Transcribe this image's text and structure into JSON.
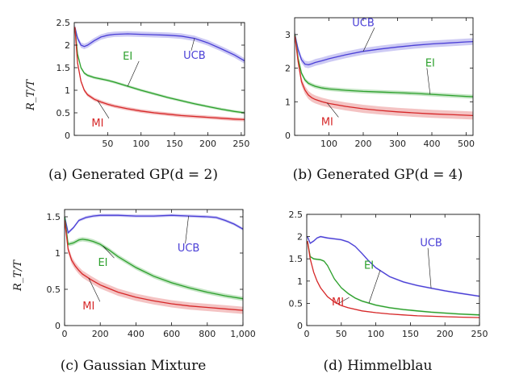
{
  "chart_data": [
    {
      "type": "line",
      "panel": "a",
      "caption": "(a) Generated GP(d = 2)",
      "ylabel": "R_T/T",
      "xlim": [
        0,
        255
      ],
      "ylim": [
        0,
        2.5
      ],
      "xticks": [
        50,
        100,
        150,
        200,
        250
      ],
      "yticks": [
        0,
        0.5,
        1,
        1.5,
        2,
        2.5
      ],
      "ytick_labels": [
        "0",
        "0.5",
        "1",
        "1.5",
        "2",
        "2.5"
      ],
      "series": [
        {
          "name": "UCB",
          "color": "#4a3fd6",
          "x": [
            1,
            5,
            10,
            15,
            20,
            30,
            40,
            50,
            60,
            80,
            100,
            120,
            140,
            160,
            180,
            200,
            220,
            240,
            255
          ],
          "y": [
            2.4,
            2.15,
            2.0,
            1.97,
            2.0,
            2.1,
            2.18,
            2.22,
            2.24,
            2.25,
            2.24,
            2.23,
            2.22,
            2.2,
            2.15,
            2.05,
            1.92,
            1.78,
            1.65
          ],
          "band": 0.06
        },
        {
          "name": "EI",
          "color": "#2ca02c",
          "x": [
            1,
            5,
            10,
            15,
            20,
            30,
            40,
            50,
            60,
            80,
            100,
            120,
            140,
            160,
            180,
            200,
            220,
            240,
            255
          ],
          "y": [
            2.4,
            1.8,
            1.5,
            1.38,
            1.33,
            1.28,
            1.25,
            1.22,
            1.18,
            1.09,
            1.0,
            0.92,
            0.84,
            0.77,
            0.7,
            0.64,
            0.58,
            0.53,
            0.5
          ],
          "band": 0.03
        },
        {
          "name": "MI",
          "color": "#d62728",
          "x": [
            1,
            5,
            10,
            15,
            20,
            30,
            40,
            50,
            60,
            80,
            100,
            120,
            140,
            160,
            180,
            200,
            220,
            240,
            255
          ],
          "y": [
            2.4,
            1.6,
            1.2,
            1.0,
            0.9,
            0.8,
            0.74,
            0.69,
            0.65,
            0.59,
            0.54,
            0.5,
            0.47,
            0.44,
            0.42,
            0.4,
            0.38,
            0.36,
            0.35
          ],
          "band": 0.04
        }
      ],
      "labels": [
        {
          "text": "UCB",
          "series": "UCB",
          "x": 180,
          "y": 1.7
        },
        {
          "text": "EI",
          "series": "EI",
          "x": 80,
          "y": 1.68
        },
        {
          "text": "MI",
          "series": "MI",
          "x": 35,
          "y": 0.2
        }
      ]
    },
    {
      "type": "line",
      "panel": "b",
      "caption": "(b) Generated GP(d = 4)",
      "ylabel": "",
      "xlim": [
        0,
        520
      ],
      "ylim": [
        0,
        3.5
      ],
      "xticks": [
        100,
        200,
        300,
        400,
        500
      ],
      "yticks": [
        0,
        1,
        2,
        3
      ],
      "ytick_labels": [
        "0",
        "1",
        "2",
        "3"
      ],
      "series": [
        {
          "name": "UCB",
          "color": "#4a3fd6",
          "x": [
            1,
            10,
            20,
            30,
            40,
            50,
            60,
            80,
            100,
            150,
            200,
            250,
            300,
            350,
            400,
            450,
            500,
            520
          ],
          "y": [
            3.0,
            2.55,
            2.25,
            2.12,
            2.1,
            2.13,
            2.17,
            2.22,
            2.28,
            2.4,
            2.5,
            2.57,
            2.63,
            2.68,
            2.72,
            2.75,
            2.78,
            2.79
          ],
          "band": 0.1
        },
        {
          "name": "EI",
          "color": "#2ca02c",
          "x": [
            1,
            10,
            20,
            30,
            40,
            50,
            60,
            80,
            100,
            150,
            200,
            250,
            300,
            350,
            400,
            450,
            500,
            520
          ],
          "y": [
            3.0,
            2.3,
            1.85,
            1.65,
            1.55,
            1.5,
            1.46,
            1.41,
            1.38,
            1.34,
            1.31,
            1.29,
            1.27,
            1.25,
            1.22,
            1.19,
            1.16,
            1.15
          ],
          "band": 0.06
        },
        {
          "name": "MI",
          "color": "#d62728",
          "x": [
            1,
            10,
            20,
            30,
            40,
            50,
            60,
            80,
            100,
            150,
            200,
            250,
            300,
            350,
            400,
            450,
            500,
            520
          ],
          "y": [
            2.95,
            2.2,
            1.6,
            1.35,
            1.2,
            1.12,
            1.07,
            1.0,
            0.95,
            0.86,
            0.79,
            0.74,
            0.7,
            0.67,
            0.64,
            0.62,
            0.6,
            0.59
          ],
          "band": 0.12
        }
      ],
      "labels": [
        {
          "text": "UCB",
          "series": "UCB",
          "x": 200,
          "y": 3.25
        },
        {
          "text": "EI",
          "series": "EI",
          "x": 395,
          "y": 2.05
        },
        {
          "text": "MI",
          "series": "MI",
          "x": 95,
          "y": 0.3
        }
      ]
    },
    {
      "type": "line",
      "panel": "c",
      "caption": "(c) Gaussian Mixture",
      "ylabel": "R_T/T",
      "xlim": [
        0,
        1000
      ],
      "ylim": [
        0,
        1.6
      ],
      "xticks": [
        0,
        200,
        400,
        600,
        800,
        1000
      ],
      "xtick_labels": [
        "0",
        "200",
        "400",
        "600",
        "800",
        "1,000"
      ],
      "yticks": [
        0,
        0.5,
        1,
        1.5
      ],
      "ytick_labels": [
        "0",
        "0.5",
        "1",
        "1.5"
      ],
      "series": [
        {
          "name": "UCB",
          "color": "#4a3fd6",
          "x": [
            1,
            20,
            50,
            80,
            120,
            160,
            200,
            300,
            400,
            500,
            600,
            700,
            800,
            850,
            900,
            950,
            1000
          ],
          "y": [
            1.5,
            1.28,
            1.35,
            1.45,
            1.49,
            1.51,
            1.52,
            1.52,
            1.51,
            1.51,
            1.52,
            1.51,
            1.5,
            1.49,
            1.45,
            1.4,
            1.33
          ],
          "band": 0.02
        },
        {
          "name": "EI",
          "color": "#2ca02c",
          "x": [
            1,
            20,
            50,
            80,
            100,
            130,
            160,
            200,
            250,
            300,
            400,
            500,
            600,
            700,
            800,
            900,
            1000
          ],
          "y": [
            1.5,
            1.12,
            1.14,
            1.18,
            1.19,
            1.18,
            1.16,
            1.12,
            1.04,
            0.95,
            0.8,
            0.68,
            0.59,
            0.52,
            0.46,
            0.41,
            0.37
          ],
          "band": 0.03
        },
        {
          "name": "MI",
          "color": "#d62728",
          "x": [
            1,
            20,
            40,
            60,
            80,
            100,
            150,
            200,
            300,
            400,
            500,
            600,
            700,
            800,
            900,
            1000
          ],
          "y": [
            1.45,
            1.05,
            0.9,
            0.82,
            0.76,
            0.71,
            0.63,
            0.56,
            0.46,
            0.39,
            0.34,
            0.3,
            0.27,
            0.25,
            0.23,
            0.21
          ],
          "band": 0.05
        }
      ],
      "labels": [
        {
          "text": "UCB",
          "series": "UCB",
          "x": 695,
          "y": 1.02
        },
        {
          "text": "EI",
          "series": "EI",
          "x": 215,
          "y": 0.82
        },
        {
          "text": "MI",
          "series": "MI",
          "x": 135,
          "y": 0.22
        }
      ]
    },
    {
      "type": "line",
      "panel": "d",
      "caption": "(d) Himmelblau",
      "ylabel": "",
      "xlim": [
        0,
        250
      ],
      "ylim": [
        0,
        2.5
      ],
      "xticks": [
        0,
        50,
        100,
        150,
        200,
        250
      ],
      "yticks": [
        0,
        0.5,
        1,
        1.5,
        2,
        2.5
      ],
      "ytick_labels": [
        "0",
        "0.5",
        "1",
        "1.5",
        "2",
        "2.5"
      ],
      "series": [
        {
          "name": "UCB",
          "color": "#4a3fd6",
          "x": [
            1,
            5,
            10,
            15,
            20,
            30,
            40,
            50,
            60,
            70,
            80,
            90,
            100,
            120,
            140,
            160,
            180,
            200,
            220,
            250
          ],
          "y": [
            2.0,
            1.85,
            1.9,
            1.97,
            2.0,
            1.97,
            1.95,
            1.93,
            1.88,
            1.78,
            1.62,
            1.45,
            1.3,
            1.1,
            0.98,
            0.9,
            0.84,
            0.78,
            0.73,
            0.66
          ],
          "band": 0.02
        },
        {
          "name": "EI",
          "color": "#2ca02c",
          "x": [
            1,
            5,
            10,
            15,
            20,
            25,
            30,
            40,
            50,
            60,
            70,
            80,
            100,
            120,
            140,
            160,
            180,
            200,
            220,
            250
          ],
          "y": [
            1.9,
            1.55,
            1.5,
            1.49,
            1.48,
            1.45,
            1.35,
            1.05,
            0.85,
            0.72,
            0.62,
            0.55,
            0.46,
            0.4,
            0.36,
            0.33,
            0.3,
            0.28,
            0.26,
            0.24
          ],
          "band": 0.02
        },
        {
          "name": "MI",
          "color": "#d62728",
          "x": [
            1,
            5,
            10,
            15,
            20,
            30,
            40,
            50,
            60,
            80,
            100,
            120,
            140,
            160,
            180,
            200,
            220,
            250
          ],
          "y": [
            1.9,
            1.5,
            1.2,
            1.0,
            0.85,
            0.65,
            0.53,
            0.45,
            0.4,
            0.33,
            0.29,
            0.26,
            0.24,
            0.22,
            0.21,
            0.2,
            0.19,
            0.18
          ],
          "band": 0.01
        }
      ],
      "labels": [
        {
          "text": "UCB",
          "series": "UCB",
          "x": 180,
          "y": 1.78
        },
        {
          "text": "EI",
          "series": "EI",
          "x": 90,
          "y": 1.28
        },
        {
          "text": "MI",
          "series": "MI",
          "x": 45,
          "y": 0.45
        }
      ]
    }
  ]
}
